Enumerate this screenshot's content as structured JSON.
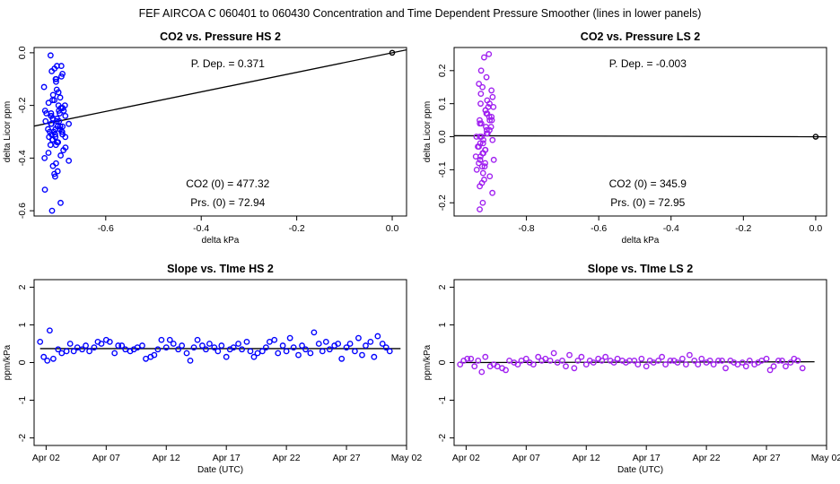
{
  "figure": {
    "suptitle": "FEF   AIRCOA C   060401 to 060430   Concentration and Time Dependent Pressure Smoother (lines in lower panels)"
  },
  "chart_data": [
    {
      "type": "scatter",
      "title": "CO2 vs. Pressure HS 2",
      "xlabel": "delta kPa",
      "ylabel": "delta Licor ppm",
      "xlim": [
        -0.75,
        0.03
      ],
      "ylim": [
        -0.62,
        0.02
      ],
      "xticks": [
        -0.6,
        -0.4,
        -0.2,
        0.0
      ],
      "xtick_labels": [
        "-0.6",
        "-0.4",
        "-0.2",
        "0.0"
      ],
      "yticks": [
        0.0,
        -0.2,
        -0.4,
        -0.6
      ],
      "ytick_labels": [
        "0.0",
        "-0.2",
        "-0.4",
        "-0.6"
      ],
      "color": "#0000ff",
      "annotations": {
        "p_dep": "P. Dep. =  0.371",
        "co2_0": "CO2 (0) =  477.32",
        "prs_0": "Prs. (0) = 72.94"
      },
      "fit_line": {
        "x": [
          -0.75,
          0.03
        ],
        "y": [
          -0.2785,
          0.0111
        ]
      },
      "reference_point": {
        "x": 0.0,
        "y": 0.0
      },
      "x_center": -0.705,
      "x_spread": 0.03,
      "points_y": [
        -0.01,
        -0.05,
        -0.05,
        -0.06,
        -0.07,
        -0.08,
        -0.09,
        -0.1,
        -0.1,
        -0.11,
        -0.13,
        -0.14,
        -0.15,
        -0.16,
        -0.17,
        -0.18,
        -0.18,
        -0.19,
        -0.2,
        -0.2,
        -0.21,
        -0.21,
        -0.22,
        -0.22,
        -0.22,
        -0.23,
        -0.23,
        -0.23,
        -0.24,
        -0.24,
        -0.24,
        -0.25,
        -0.25,
        -0.25,
        -0.26,
        -0.26,
        -0.26,
        -0.27,
        -0.27,
        -0.27,
        -0.28,
        -0.28,
        -0.28,
        -0.29,
        -0.29,
        -0.29,
        -0.3,
        -0.3,
        -0.3,
        -0.3,
        -0.31,
        -0.31,
        -0.31,
        -0.32,
        -0.32,
        -0.32,
        -0.33,
        -0.33,
        -0.34,
        -0.34,
        -0.35,
        -0.35,
        -0.36,
        -0.37,
        -0.38,
        -0.39,
        -0.4,
        -0.41,
        -0.42,
        -0.43,
        -0.45,
        -0.46,
        -0.47,
        -0.52,
        -0.57,
        -0.6
      ]
    },
    {
      "type": "scatter",
      "title": "CO2 vs. Pressure LS 2",
      "xlabel": "delta kPa",
      "ylabel": "delta Licor ppm",
      "xlim": [
        -1.0,
        0.03
      ],
      "ylim": [
        -0.24,
        0.27
      ],
      "xticks": [
        -0.8,
        -0.6,
        -0.4,
        -0.2,
        0.0
      ],
      "xtick_labels": [
        "-0.8",
        "-0.6",
        "-0.4",
        "-0.2",
        "0.0"
      ],
      "yticks": [
        0.2,
        0.1,
        0.0,
        -0.1,
        -0.2
      ],
      "ytick_labels": [
        "0.2",
        "0.1",
        "0.0",
        "-0.1",
        "-0.2"
      ],
      "color": "#a020f0",
      "annotations": {
        "p_dep": "P. Dep. =  -0.003",
        "co2_0": "CO2 (0) =  345.9",
        "prs_0": "Prs. (0) = 72.95"
      },
      "fit_line": {
        "x": [
          -1.0,
          0.03
        ],
        "y": [
          0.003,
          -0.0001
        ]
      },
      "reference_point": {
        "x": 0.0,
        "y": 0.0
      },
      "x_center": -0.915,
      "x_spread": 0.03,
      "points_y": [
        0.25,
        0.24,
        0.2,
        0.18,
        0.16,
        0.15,
        0.14,
        0.13,
        0.12,
        0.11,
        0.1,
        0.1,
        0.09,
        0.09,
        0.08,
        0.08,
        0.07,
        0.07,
        0.06,
        0.06,
        0.05,
        0.05,
        0.05,
        0.04,
        0.04,
        0.03,
        0.03,
        0.02,
        0.02,
        0.01,
        0.01,
        0.0,
        0.0,
        0.0,
        -0.01,
        -0.01,
        -0.02,
        -0.02,
        -0.03,
        -0.03,
        -0.04,
        -0.04,
        -0.05,
        -0.05,
        -0.06,
        -0.06,
        -0.07,
        -0.07,
        -0.08,
        -0.08,
        -0.09,
        -0.09,
        -0.1,
        -0.11,
        -0.12,
        -0.13,
        -0.14,
        -0.15,
        -0.17,
        -0.2,
        -0.22
      ]
    },
    {
      "type": "scatter",
      "title": "Slope vs. TIme HS 2",
      "xlabel": "Date (UTC)",
      "ylabel": "ppm/kPa",
      "xlim": [
        0.0,
        31.0
      ],
      "ylim": [
        -2.2,
        2.2
      ],
      "xticks": [
        1,
        6,
        11,
        16,
        21,
        26,
        31
      ],
      "xtick_labels": [
        "Apr 02",
        "Apr 07",
        "Apr 12",
        "Apr 17",
        "Apr 22",
        "Apr 27",
        "May 02"
      ],
      "yticks": [
        2,
        1,
        0,
        -1,
        -2
      ],
      "ytick_labels": [
        "2",
        "1",
        "0",
        "-1",
        "-2"
      ],
      "color": "#0000ff",
      "line": {
        "x": [
          0.5,
          30.5
        ],
        "y": [
          0.37,
          0.37
        ]
      },
      "points_x": [
        0.5,
        0.8,
        1.1,
        1.3,
        1.6,
        2.0,
        2.3,
        2.7,
        3.0,
        3.3,
        3.6,
        4.0,
        4.3,
        4.6,
        5.0,
        5.3,
        5.6,
        6.0,
        6.3,
        6.7,
        7.0,
        7.3,
        7.6,
        8.0,
        8.3,
        8.6,
        9.0,
        9.3,
        9.7,
        10.0,
        10.3,
        10.6,
        11.0,
        11.3,
        11.6,
        12.0,
        12.3,
        12.7,
        13.0,
        13.3,
        13.6,
        14.0,
        14.3,
        14.6,
        15.0,
        15.3,
        15.6,
        16.0,
        16.3,
        16.6,
        17.0,
        17.3,
        17.7,
        18.0,
        18.3,
        18.6,
        19.0,
        19.3,
        19.6,
        20.0,
        20.3,
        20.7,
        21.0,
        21.3,
        21.6,
        22.0,
        22.3,
        22.6,
        23.0,
        23.3,
        23.7,
        24.0,
        24.3,
        24.6,
        25.0,
        25.3,
        25.6,
        26.0,
        26.3,
        26.7,
        27.0,
        27.3,
        27.6,
        28.0,
        28.3,
        28.6,
        29.0,
        29.3,
        29.6
      ],
      "points_y": [
        0.55,
        0.15,
        0.05,
        0.85,
        0.1,
        0.35,
        0.25,
        0.3,
        0.5,
        0.3,
        0.4,
        0.35,
        0.45,
        0.3,
        0.4,
        0.55,
        0.5,
        0.6,
        0.55,
        0.25,
        0.45,
        0.45,
        0.35,
        0.3,
        0.35,
        0.4,
        0.45,
        0.1,
        0.15,
        0.2,
        0.35,
        0.6,
        0.4,
        0.6,
        0.5,
        0.35,
        0.45,
        0.25,
        0.05,
        0.4,
        0.6,
        0.45,
        0.35,
        0.5,
        0.4,
        0.3,
        0.45,
        0.15,
        0.35,
        0.4,
        0.5,
        0.35,
        0.55,
        0.3,
        0.15,
        0.25,
        0.3,
        0.4,
        0.55,
        0.6,
        0.25,
        0.45,
        0.3,
        0.65,
        0.4,
        0.2,
        0.45,
        0.35,
        0.25,
        0.8,
        0.5,
        0.3,
        0.55,
        0.35,
        0.45,
        0.5,
        0.1,
        0.4,
        0.5,
        0.3,
        0.65,
        0.2,
        0.45,
        0.55,
        0.15,
        0.7,
        0.5,
        0.4,
        0.3
      ]
    },
    {
      "type": "scatter",
      "title": "Slope vs. TIme LS 2",
      "xlabel": "Date (UTC)",
      "ylabel": "ppm/kPa",
      "xlim": [
        0.0,
        31.0
      ],
      "ylim": [
        -2.2,
        2.2
      ],
      "xticks": [
        1,
        6,
        11,
        16,
        21,
        26,
        31
      ],
      "xtick_labels": [
        "Apr 02",
        "Apr 07",
        "Apr 12",
        "Apr 17",
        "Apr 22",
        "Apr 27",
        "May 02"
      ],
      "yticks": [
        2,
        1,
        0,
        -1,
        -2
      ],
      "ytick_labels": [
        "2",
        "1",
        "0",
        "-1",
        "-2"
      ],
      "color": "#a020f0",
      "line": {
        "x": [
          0.5,
          30.0
        ],
        "y": [
          0.0,
          0.02
        ]
      },
      "points_x": [
        0.5,
        0.8,
        1.1,
        1.4,
        1.7,
        2.0,
        2.3,
        2.6,
        3.0,
        3.3,
        3.6,
        4.0,
        4.3,
        4.6,
        5.0,
        5.3,
        5.6,
        6.0,
        6.3,
        6.6,
        7.0,
        7.3,
        7.6,
        8.0,
        8.3,
        8.6,
        9.0,
        9.3,
        9.6,
        10.0,
        10.3,
        10.6,
        11.0,
        11.3,
        11.6,
        12.0,
        12.3,
        12.6,
        13.0,
        13.3,
        13.6,
        14.0,
        14.3,
        14.6,
        15.0,
        15.3,
        15.6,
        16.0,
        16.3,
        16.6,
        17.0,
        17.3,
        17.6,
        18.0,
        18.3,
        18.6,
        19.0,
        19.3,
        19.6,
        20.0,
        20.3,
        20.6,
        21.0,
        21.3,
        21.6,
        22.0,
        22.3,
        22.6,
        23.0,
        23.3,
        23.6,
        24.0,
        24.3,
        24.6,
        25.0,
        25.3,
        25.6,
        26.0,
        26.3,
        26.6,
        27.0,
        27.3,
        27.6,
        28.0,
        28.3,
        28.6,
        29.0
      ],
      "points_y": [
        -0.05,
        0.05,
        0.1,
        0.1,
        -0.1,
        0.05,
        -0.25,
        0.15,
        -0.1,
        -0.05,
        -0.1,
        -0.15,
        -0.2,
        0.05,
        0.0,
        -0.05,
        0.05,
        0.1,
        0.0,
        -0.05,
        0.15,
        0.05,
        0.1,
        0.05,
        0.25,
        0.0,
        0.05,
        -0.1,
        0.2,
        -0.15,
        0.05,
        0.15,
        -0.05,
        0.05,
        0.0,
        0.1,
        0.05,
        0.15,
        0.05,
        0.0,
        0.1,
        0.05,
        0.0,
        0.05,
        0.05,
        -0.05,
        0.1,
        -0.1,
        0.05,
        0.0,
        0.05,
        0.15,
        -0.05,
        0.05,
        0.05,
        0.0,
        0.1,
        -0.05,
        0.2,
        0.05,
        -0.05,
        0.1,
        0.0,
        0.05,
        -0.05,
        0.05,
        0.05,
        -0.15,
        0.05,
        0.0,
        -0.05,
        0.0,
        -0.1,
        0.05,
        -0.05,
        0.0,
        0.05,
        0.1,
        -0.2,
        -0.1,
        0.05,
        0.05,
        -0.1,
        0.0,
        0.1,
        0.05,
        -0.15
      ]
    }
  ]
}
